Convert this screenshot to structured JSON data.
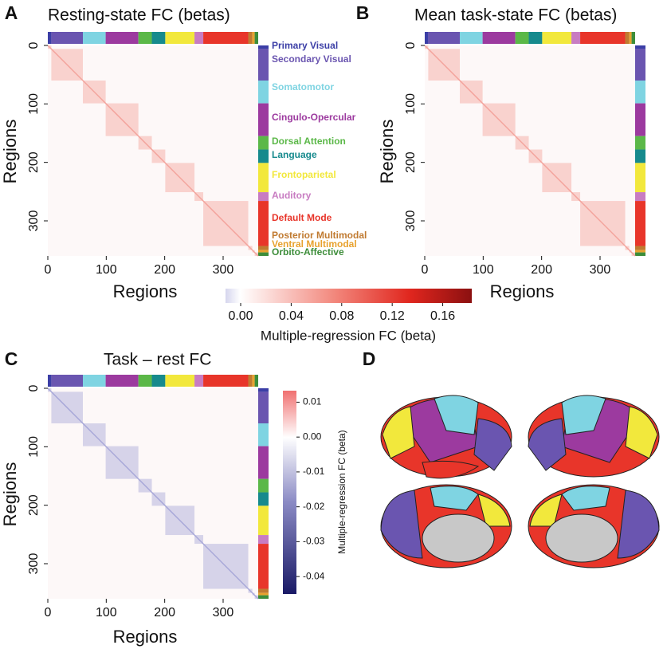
{
  "panels": [
    {
      "label": "A",
      "title": "Resting-state FC (betas)",
      "x_label": "Regions",
      "y_label": "Regions",
      "lim": [
        0,
        360
      ],
      "xticks": [
        0,
        100,
        200,
        300
      ],
      "yticks": [
        0,
        100,
        200,
        300
      ]
    },
    {
      "label": "B",
      "title": "Mean task-state FC (betas)",
      "x_label": "Regions",
      "y_label": "Regions",
      "lim": [
        0,
        360
      ],
      "xticks": [
        0,
        100,
        200,
        300
      ],
      "yticks": [
        0,
        100,
        200,
        300
      ]
    },
    {
      "label": "C",
      "title": "Task – rest FC",
      "x_label": "Regions",
      "y_label": "Regions",
      "lim": [
        0,
        360
      ],
      "xticks": [
        0,
        100,
        200,
        300
      ],
      "yticks": [
        0,
        100,
        200,
        300
      ]
    },
    {
      "label": "D"
    }
  ],
  "networks": [
    {
      "name": "Primary Visual",
      "color": "#3b3ea6",
      "count": 6
    },
    {
      "name": "Secondary Visual",
      "color": "#6a55b0",
      "count": 54
    },
    {
      "name": "Somatomotor",
      "color": "#7fd4e2",
      "count": 39
    },
    {
      "name": "Cingulo-Opercular",
      "color": "#9c3a9f",
      "count": 56
    },
    {
      "name": "Dorsal Attention",
      "color": "#5bb848",
      "count": 23
    },
    {
      "name": "Language",
      "color": "#168a8d",
      "count": 23
    },
    {
      "name": "Frontoparietal",
      "color": "#f2e83c",
      "count": 50
    },
    {
      "name": "Auditory",
      "color": "#c87cc2",
      "count": 15
    },
    {
      "name": "Default Mode",
      "color": "#e8352a",
      "count": 77
    },
    {
      "name": "Posterior Multimodal",
      "color": "#c07a30",
      "count": 7
    },
    {
      "name": "Ventral Multimodal",
      "color": "#e8a22e",
      "count": 4
    },
    {
      "name": "Orbito-Affective",
      "color": "#3d8d3a",
      "count": 6
    }
  ],
  "colorbar_ab": {
    "label": "Multiple-regression FC (beta)",
    "lim": [
      -0.012,
      0.183
    ],
    "ticks": [
      {
        "value": 0,
        "label": "0.00"
      },
      0.04,
      0.08,
      0.12,
      0.16
    ]
  },
  "colorbar_c": {
    "label": "Multiple-regression FC (beta)",
    "lim": [
      -0.045,
      0.0133
    ],
    "ticks": [
      0.01,
      {
        "value": 0,
        "label": "0.00"
      },
      -0.01,
      -0.02,
      -0.03,
      -0.04
    ]
  }
}
